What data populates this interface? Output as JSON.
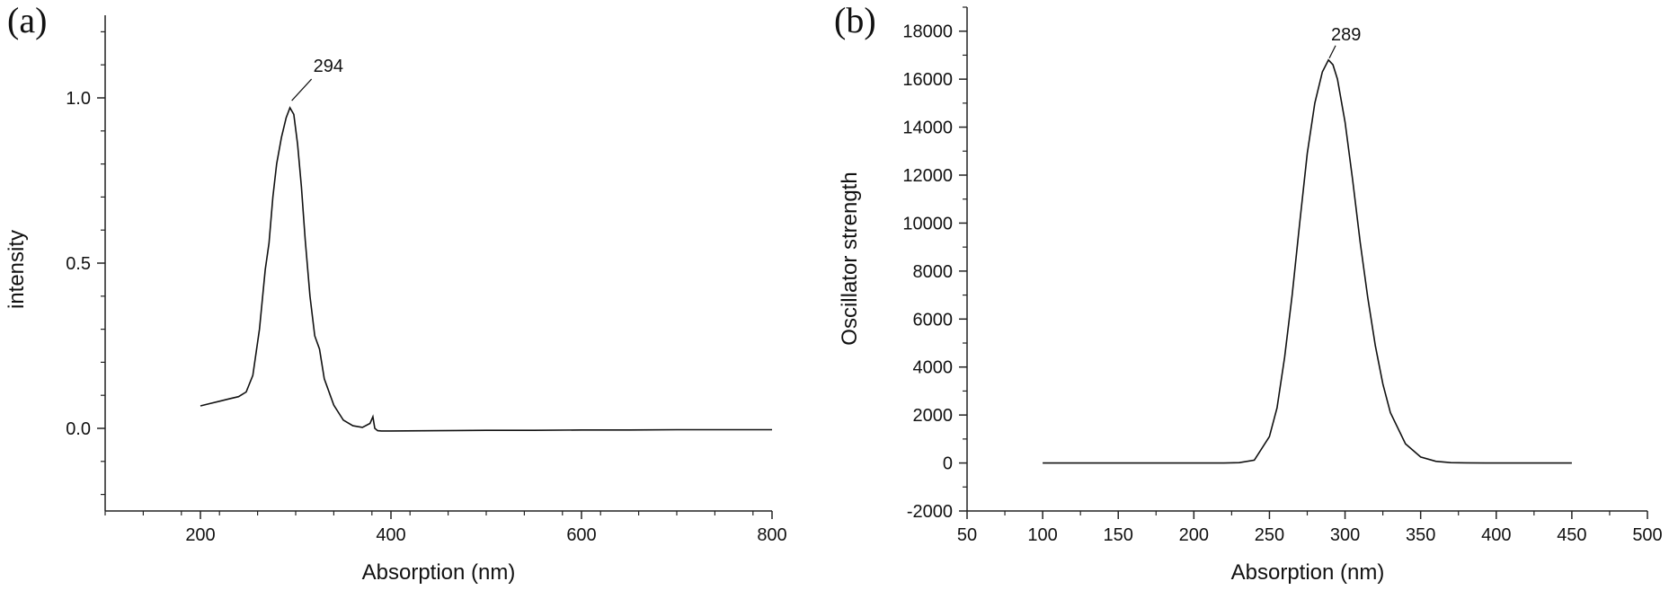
{
  "chart_data": [
    {
      "type": "line",
      "panel_label": "(a)",
      "title": "",
      "xlabel": "Absorption (nm)",
      "ylabel": "intensity",
      "xlim": [
        100,
        800
      ],
      "ylim": [
        -0.25,
        1.25
      ],
      "xticks": [
        200,
        400,
        600,
        800
      ],
      "xtick_labels": [
        "200",
        "400",
        "600",
        "800"
      ],
      "yticks": [
        0.0,
        0.5,
        1.0
      ],
      "ytick_labels": [
        "0.0",
        "0.5",
        "1.0"
      ],
      "grid": false,
      "annotations": [
        {
          "text": "294",
          "x": 294,
          "y": 0.97
        }
      ],
      "series": [
        {
          "x": [
            200,
            210,
            220,
            230,
            240,
            248,
            255,
            262,
            268,
            272,
            276,
            280,
            285,
            290,
            294,
            298,
            302,
            306,
            310,
            315,
            320,
            325,
            330,
            340,
            350,
            360,
            370,
            378,
            381,
            383,
            386,
            390,
            400,
            450,
            500,
            550,
            600,
            650,
            700,
            750,
            800
          ],
          "y": [
            0.068,
            0.075,
            0.082,
            0.089,
            0.096,
            0.11,
            0.16,
            0.3,
            0.48,
            0.56,
            0.7,
            0.8,
            0.88,
            0.94,
            0.97,
            0.95,
            0.86,
            0.73,
            0.57,
            0.4,
            0.28,
            0.24,
            0.15,
            0.07,
            0.025,
            0.008,
            0.003,
            0.015,
            0.035,
            0.0,
            -0.007,
            -0.008,
            -0.008,
            -0.007,
            -0.006,
            -0.006,
            -0.005,
            -0.005,
            -0.004,
            -0.004,
            -0.004
          ]
        }
      ]
    },
    {
      "type": "line",
      "panel_label": "(b)",
      "title": "",
      "xlabel": "Absorption (nm)",
      "ylabel": "Oscillator strength",
      "xlim": [
        50,
        500
      ],
      "ylim": [
        -2000,
        19000
      ],
      "xticks": [
        50,
        100,
        150,
        200,
        250,
        300,
        350,
        400,
        450,
        500
      ],
      "xtick_labels": [
        "50",
        "100",
        "150",
        "200",
        "250",
        "300",
        "350",
        "400",
        "450",
        "500"
      ],
      "yticks": [
        -2000,
        0,
        2000,
        4000,
        6000,
        8000,
        10000,
        12000,
        14000,
        16000,
        18000
      ],
      "ytick_labels": [
        "-2000",
        "0",
        "2000",
        "4000",
        "6000",
        "8000",
        "10000",
        "12000",
        "14000",
        "16000",
        "18000"
      ],
      "grid": false,
      "annotations": [
        {
          "text": "289",
          "x": 289,
          "y": 16800
        }
      ],
      "series": [
        {
          "x": [
            100,
            150,
            200,
            220,
            230,
            240,
            250,
            255,
            260,
            265,
            270,
            275,
            280,
            285,
            289,
            292,
            295,
            300,
            305,
            310,
            315,
            320,
            325,
            330,
            340,
            350,
            360,
            370,
            380,
            400,
            420,
            450
          ],
          "y": [
            0,
            0,
            0,
            0,
            15,
            120,
            1100,
            2300,
            4400,
            7000,
            10000,
            12900,
            15000,
            16300,
            16800,
            16600,
            16000,
            14200,
            11800,
            9200,
            6900,
            4900,
            3300,
            2100,
            800,
            250,
            70,
            15,
            5,
            0,
            0,
            0
          ]
        }
      ]
    }
  ]
}
